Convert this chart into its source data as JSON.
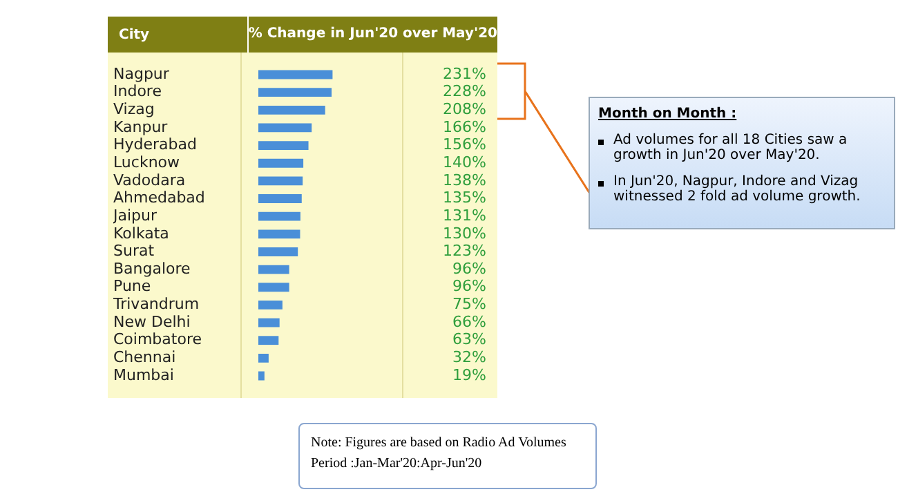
{
  "chart_data": {
    "type": "bar",
    "orientation": "horizontal",
    "ylabel": "City",
    "xlabel": "% Change in Jun'20 over May'20",
    "categories": [
      "Nagpur",
      "Indore",
      "Vizag",
      "Kanpur",
      "Hyderabad",
      "Lucknow",
      "Vadodara",
      "Ahmedabad",
      "Jaipur",
      "Kolkata",
      "Surat",
      "Bangalore",
      "Pune",
      "Trivandrum",
      "New Delhi",
      "Coimbatore",
      "Chennai",
      "Mumbai"
    ],
    "values": [
      231,
      228,
      208,
      166,
      156,
      140,
      138,
      135,
      131,
      130,
      123,
      96,
      96,
      75,
      66,
      63,
      32,
      19
    ],
    "value_labels": [
      "231%",
      "228%",
      "208%",
      "166%",
      "156%",
      "140%",
      "138%",
      "135%",
      "131%",
      "130%",
      "123%",
      "96%",
      "96%",
      "75%",
      "66%",
      "63%",
      "32%",
      "19%"
    ],
    "color": "#4a8fd8",
    "grid": false,
    "legend": false,
    "annotations": [
      "Month on Month :",
      "Ad volumes for all 18 Cities saw a growth in Jun'20 over May'20.",
      "In Jun'20, Nagpur, Indore and Vizag witnessed 2 fold ad volume growth.",
      "Note: Figures are based on Radio Ad Volumes",
      "Period :Jan-Mar'20:Apr-Jun'20"
    ]
  }
}
